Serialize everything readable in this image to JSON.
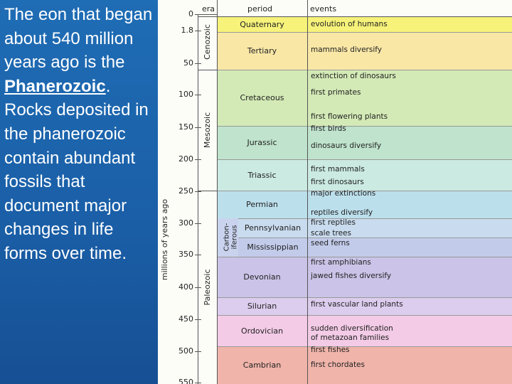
{
  "slide": {
    "text_before": "The eon that began about 540 million years ago is the ",
    "term": "Phanerozoic",
    "text_after": ". Rocks deposited in the phanerozoic contain abundant fossils that document major changes in life forms over time."
  },
  "timescale": {
    "axis_label": "millions of years ago",
    "headers": [
      "era",
      "period",
      "events"
    ],
    "ticks": [
      "0",
      "1.8",
      "50",
      "100",
      "150",
      "200",
      "250",
      "300",
      "350",
      "400",
      "450",
      "500",
      "550"
    ],
    "eras": [
      "Cenozoic",
      "Mesozoic",
      "Paleozoic"
    ],
    "carboniferous": [
      "Carbon-",
      "iferous"
    ],
    "periods": [
      "Quaternary",
      "Tertiary",
      "Cretaceous",
      "Jurassic",
      "Triassic",
      "Permian",
      "Pennsylvanian",
      "Mississippian",
      "Devonian",
      "Silurian",
      "Ordovician",
      "Cambrian"
    ],
    "events": [
      "evolution of humans",
      "mammals diversify",
      "extinction of dinosaurs",
      "first primates",
      "first flowering plants",
      "first birds",
      "dinosaurs diversify",
      "first mammals",
      "first dinosaurs",
      "major extinctions",
      "reptiles diversify",
      "first reptiles",
      "scale trees",
      "seed ferns",
      "first amphibians",
      "jawed fishes diversify",
      "first vascular land plants",
      "sudden diversification of metazoan families",
      "first fishes",
      "first chordates"
    ]
  }
}
